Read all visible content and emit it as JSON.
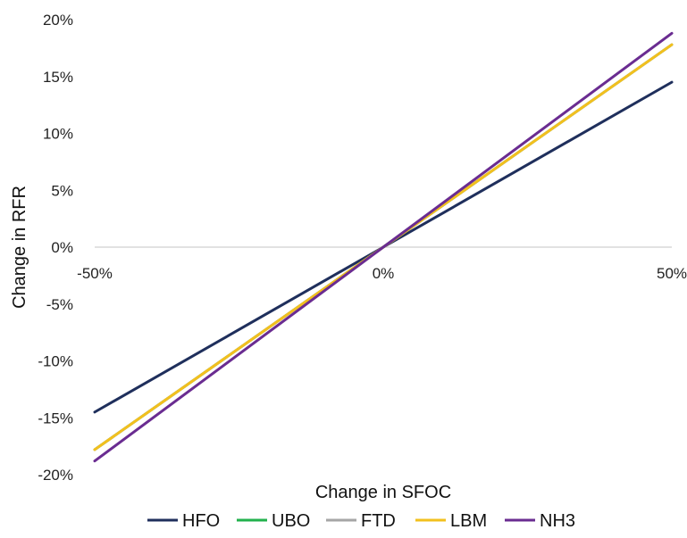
{
  "chart_data": {
    "type": "line",
    "title": "",
    "xlabel": "Change in SFOC",
    "ylabel": "Change in RFR",
    "x": [
      -50,
      0,
      50
    ],
    "x_tick_labels": [
      "-50%",
      "0%",
      "50%"
    ],
    "y_tick_labels": [
      "20%",
      "15%",
      "10%",
      "5%",
      "0%",
      "-5%",
      "-10%",
      "-15%",
      "-20%"
    ],
    "y_ticks": [
      20,
      15,
      10,
      5,
      0,
      -5,
      -10,
      -15,
      -20
    ],
    "ylim": [
      -20,
      20
    ],
    "xlim": [
      -50,
      50
    ],
    "grid": false,
    "legend_position": "bottom",
    "series": [
      {
        "name": "HFO",
        "color": "#1f2f5c",
        "values": [
          -14.5,
          0,
          14.5
        ]
      },
      {
        "name": "UBO",
        "color": "#22b14c",
        "values": [
          -17.8,
          0,
          17.8
        ]
      },
      {
        "name": "FTD",
        "color": "#a6a6a6",
        "values": [
          -17.8,
          0,
          17.8
        ]
      },
      {
        "name": "LBM",
        "color": "#f2c01e",
        "values": [
          -17.8,
          0,
          17.8
        ]
      },
      {
        "name": "NH3",
        "color": "#6a2c91",
        "values": [
          -18.8,
          0,
          18.8
        ]
      }
    ]
  }
}
